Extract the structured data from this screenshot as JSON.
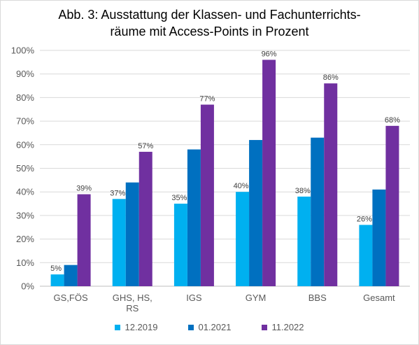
{
  "chart_data": {
    "type": "bar",
    "title_lines": [
      "Abb. 3: Ausstattung der Klassen- und Fachunterrichts-",
      "räume mit Access-Points in Prozent"
    ],
    "categories": [
      [
        "GS,FÖS"
      ],
      [
        "GHS, HS,",
        "RS"
      ],
      [
        "IGS"
      ],
      [
        "GYM"
      ],
      [
        "BBS"
      ],
      [
        "Gesamt"
      ]
    ],
    "series": [
      {
        "name": "12.2019",
        "color": "#00b0f0",
        "values": [
          5,
          37,
          35,
          40,
          38,
          26
        ],
        "labels": [
          "5%",
          "37%",
          "35%",
          "40%",
          "38%",
          "26%"
        ]
      },
      {
        "name": "01.2021",
        "color": "#0070c0",
        "values": [
          9,
          44,
          58,
          62,
          63,
          41
        ],
        "labels": [
          "",
          "",
          "",
          "",
          "",
          ""
        ]
      },
      {
        "name": "11.2022",
        "color": "#7030a0",
        "values": [
          39,
          57,
          77,
          96,
          86,
          68
        ],
        "labels": [
          "39%",
          "57%",
          "77%",
          "96%",
          "86%",
          "68%"
        ]
      }
    ],
    "yticks": [
      "0%",
      "10%",
      "20%",
      "30%",
      "40%",
      "50%",
      "60%",
      "70%",
      "80%",
      "90%",
      "100%"
    ],
    "ylim": [
      0,
      100
    ],
    "grid": true,
    "legend_position": "bottom"
  }
}
